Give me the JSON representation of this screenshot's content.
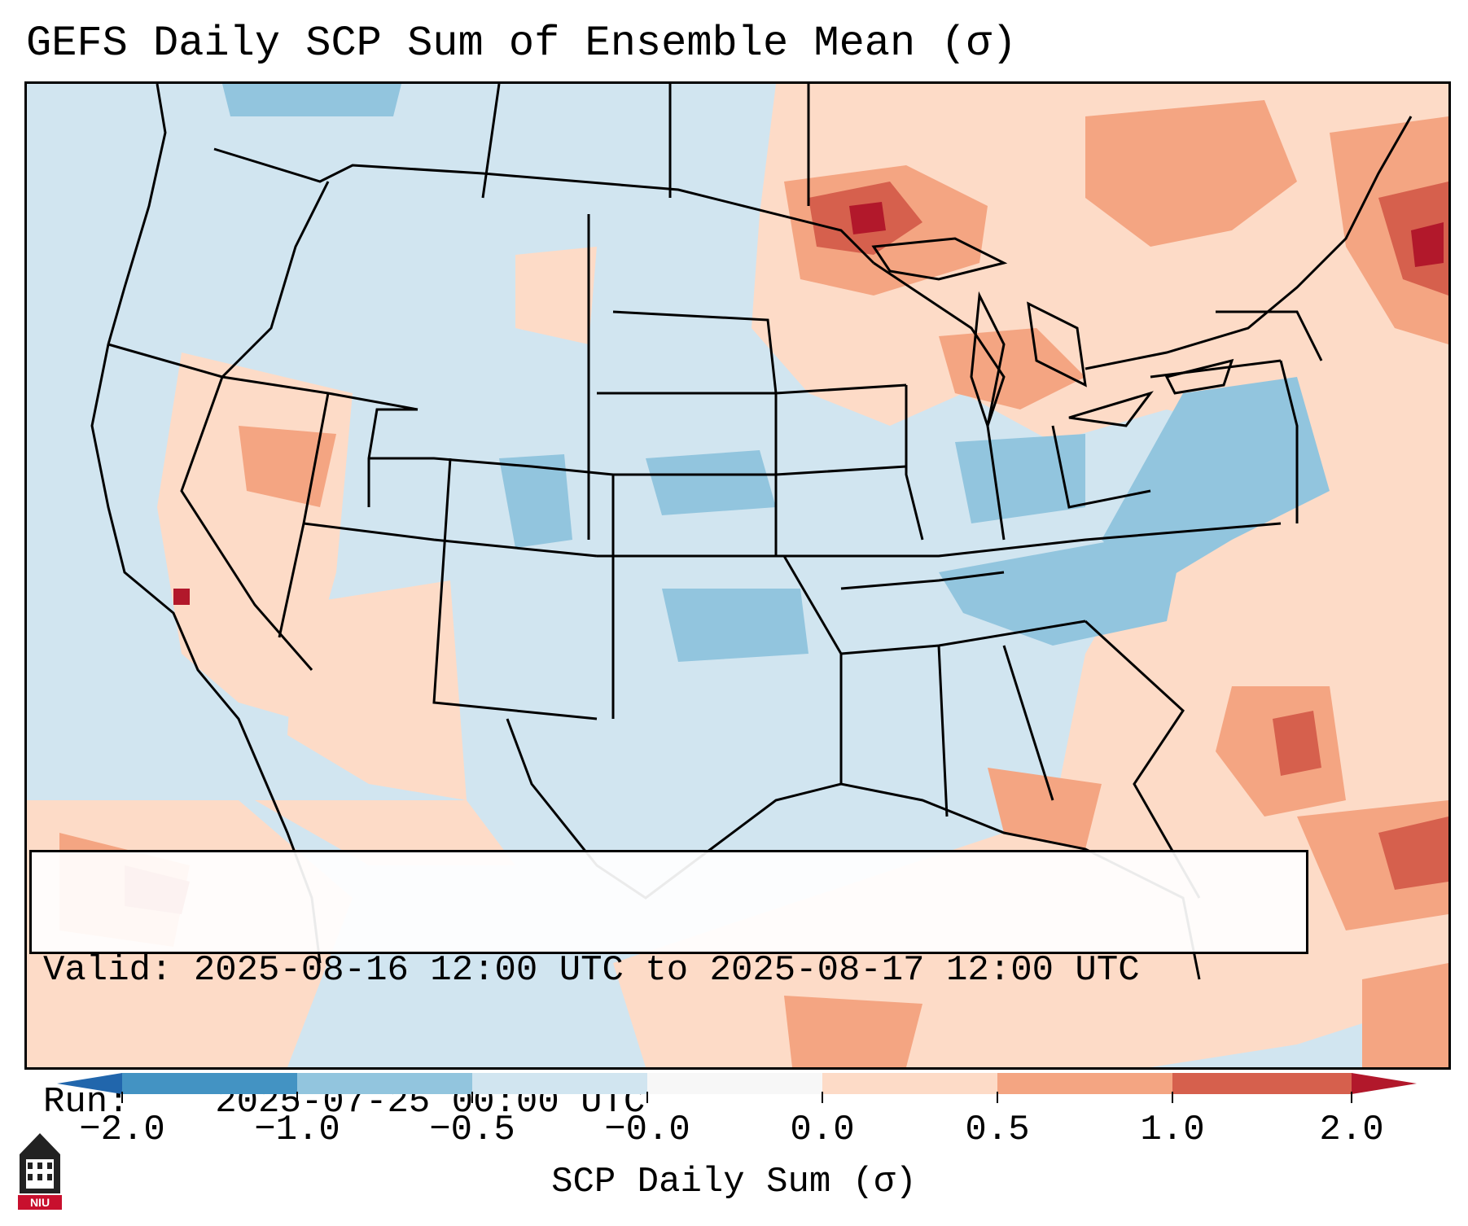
{
  "title": "GEFS Daily SCP Sum of Ensemble Mean (σ)",
  "info": {
    "valid_label": "Valid:",
    "valid_value": "2025-08-16 12:00 UTC to 2025-08-17 12:00 UTC",
    "run_label": "Run:",
    "run_value": "2025-07-25 00:00 UTC"
  },
  "colorbar": {
    "label": "SCP Daily Sum (σ)",
    "ticks": [
      "−2.0",
      "−1.0",
      "−0.5",
      "−0.0",
      "0.0",
      "0.5",
      "1.0",
      "2.0"
    ],
    "colors": {
      "below_min": "#2166ac",
      "bin_1": "#4393c3",
      "bin_2": "#92c5de",
      "bin_3": "#d1e5f0",
      "bin_4": "#f7f7f7",
      "bin_5": "#fddbc7",
      "bin_6": "#f4a582",
      "bin_7": "#d6604d",
      "above_max": "#b2182b"
    }
  },
  "logo": {
    "text": "NIU",
    "icon": "university-tower-icon",
    "color": "#c8102e"
  }
}
